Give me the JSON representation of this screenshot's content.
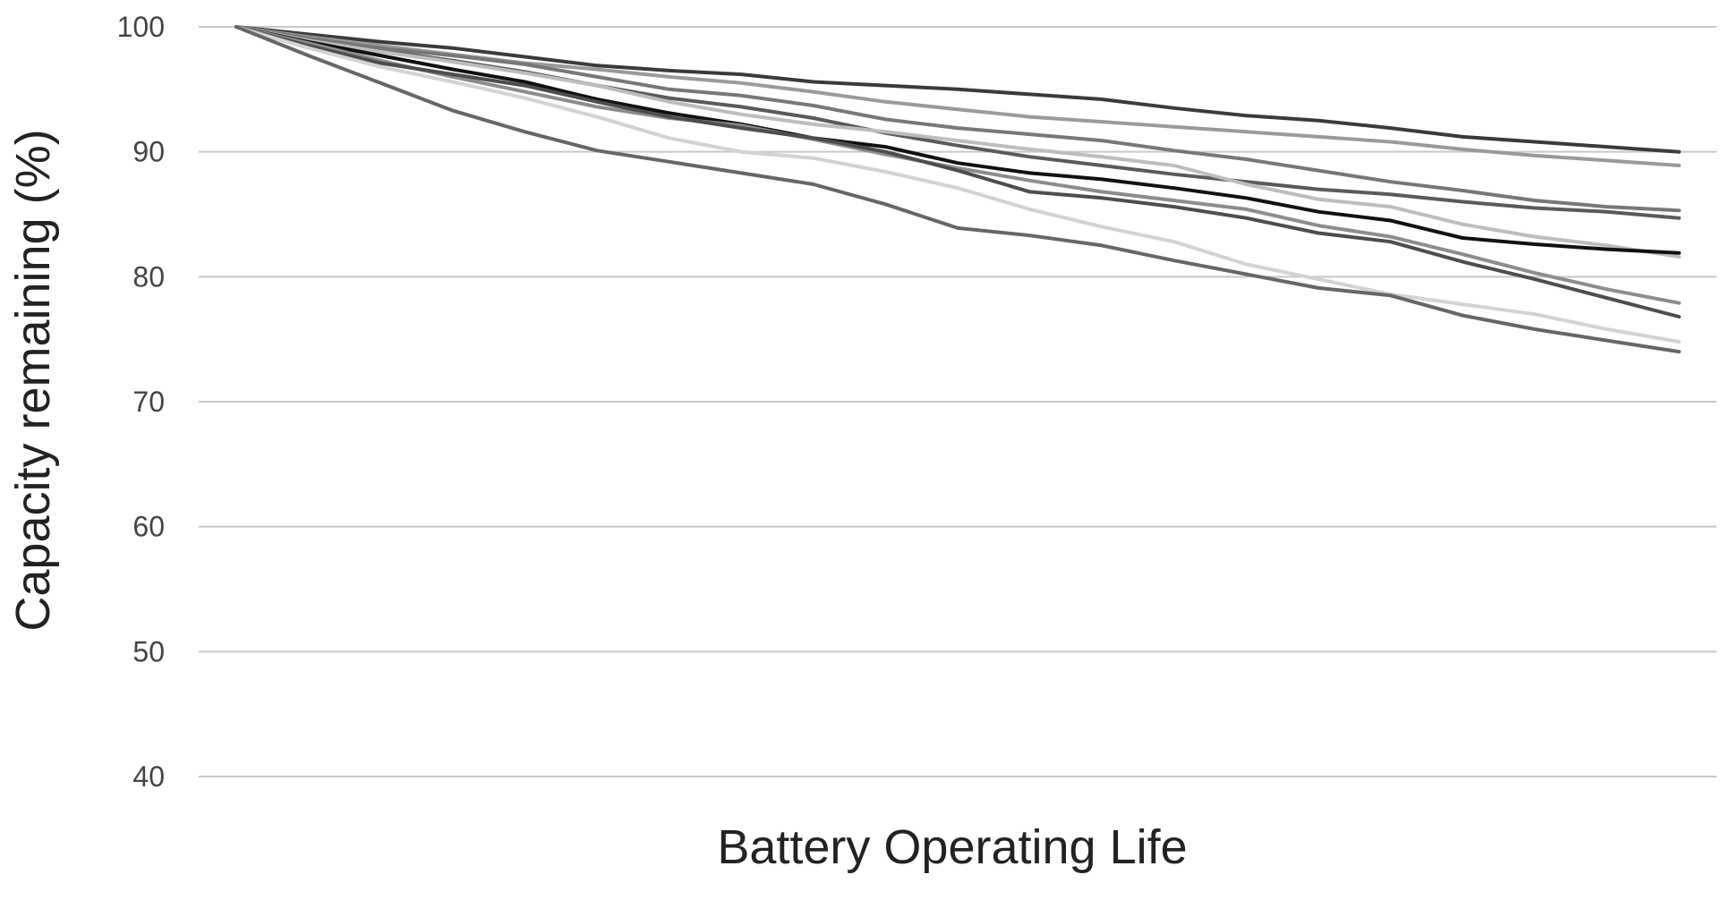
{
  "chart_data": {
    "type": "line",
    "title": "",
    "xlabel": "Battery Operating Life",
    "ylabel": "Capacity remaining (%)",
    "ylim": [
      40,
      100
    ],
    "yticks": [
      100,
      90,
      80,
      70,
      60,
      50,
      40
    ],
    "grid": true,
    "legend": "none",
    "x": [
      0,
      1,
      2,
      3,
      4,
      5,
      6,
      7,
      8,
      9,
      10,
      11,
      12,
      13,
      14,
      15,
      16,
      17,
      18,
      19,
      20
    ],
    "series": [
      {
        "color": "#3a3a3a",
        "values": [
          100,
          99.4,
          98.8,
          98.3,
          97.6,
          96.9,
          96.5,
          96.2,
          95.6,
          95.3,
          95.0,
          94.6,
          94.2,
          93.5,
          92.9,
          92.5,
          91.9,
          91.2,
          90.8,
          90.4,
          90.0
        ]
      },
      {
        "color": "#9a9a9a",
        "values": [
          100,
          99.2,
          98.5,
          97.8,
          97.1,
          96.6,
          96.0,
          95.5,
          94.8,
          94.0,
          93.4,
          92.8,
          92.4,
          92.0,
          91.6,
          91.2,
          90.8,
          90.2,
          89.7,
          89.3,
          88.9
        ]
      },
      {
        "color": "#5a5a5a",
        "values": [
          100,
          99.0,
          98.1,
          97.3,
          96.4,
          95.3,
          94.3,
          93.6,
          92.7,
          91.5,
          90.5,
          89.6,
          88.9,
          88.2,
          87.6,
          87.0,
          86.6,
          86.0,
          85.5,
          85.2,
          84.7
        ]
      },
      {
        "color": "#777777",
        "values": [
          100,
          99.1,
          98.3,
          97.7,
          97.0,
          96.0,
          95.0,
          94.5,
          93.7,
          92.6,
          91.9,
          91.4,
          90.9,
          90.1,
          89.4,
          88.5,
          87.6,
          86.9,
          86.1,
          85.6,
          85.3
        ]
      },
      {
        "color": "#bdbdbd",
        "values": [
          100,
          98.9,
          98.0,
          97.2,
          96.3,
          95.3,
          94.0,
          93.0,
          92.2,
          91.6,
          90.9,
          90.2,
          89.6,
          88.9,
          87.4,
          86.2,
          85.6,
          84.2,
          83.2,
          82.5,
          81.6
        ]
      },
      {
        "color": "#111111",
        "values": [
          100,
          98.8,
          97.7,
          96.6,
          95.6,
          94.2,
          93.1,
          92.2,
          91.1,
          90.4,
          89.1,
          88.3,
          87.8,
          87.1,
          86.3,
          85.2,
          84.5,
          83.1,
          82.6,
          82.2,
          81.9
        ]
      },
      {
        "color": "#8c8c8c",
        "values": [
          100,
          98.7,
          97.3,
          96.0,
          94.8,
          93.6,
          92.7,
          92.1,
          91.0,
          89.8,
          88.7,
          87.7,
          86.8,
          86.1,
          85.4,
          84.1,
          83.2,
          81.8,
          80.3,
          79.0,
          77.9
        ]
      },
      {
        "color": "#4d4d4d",
        "values": [
          100,
          98.5,
          97.1,
          96.2,
          95.3,
          94.0,
          92.8,
          91.9,
          91.1,
          90.0,
          88.5,
          86.8,
          86.3,
          85.6,
          84.7,
          83.5,
          82.8,
          81.2,
          79.8,
          78.3,
          76.8
        ]
      },
      {
        "color": "#d3d3d3",
        "values": [
          100,
          98.3,
          96.8,
          95.6,
          94.3,
          92.8,
          91.1,
          90.0,
          89.5,
          88.4,
          87.1,
          85.4,
          84.0,
          82.8,
          81.0,
          79.8,
          78.6,
          77.8,
          77.0,
          75.8,
          74.8
        ]
      },
      {
        "color": "#666666",
        "values": [
          100,
          97.7,
          95.5,
          93.3,
          91.6,
          90.1,
          89.2,
          88.3,
          87.4,
          85.8,
          83.9,
          83.3,
          82.5,
          81.3,
          80.2,
          79.1,
          78.5,
          76.9,
          75.8,
          74.9,
          74.0
        ]
      }
    ]
  }
}
